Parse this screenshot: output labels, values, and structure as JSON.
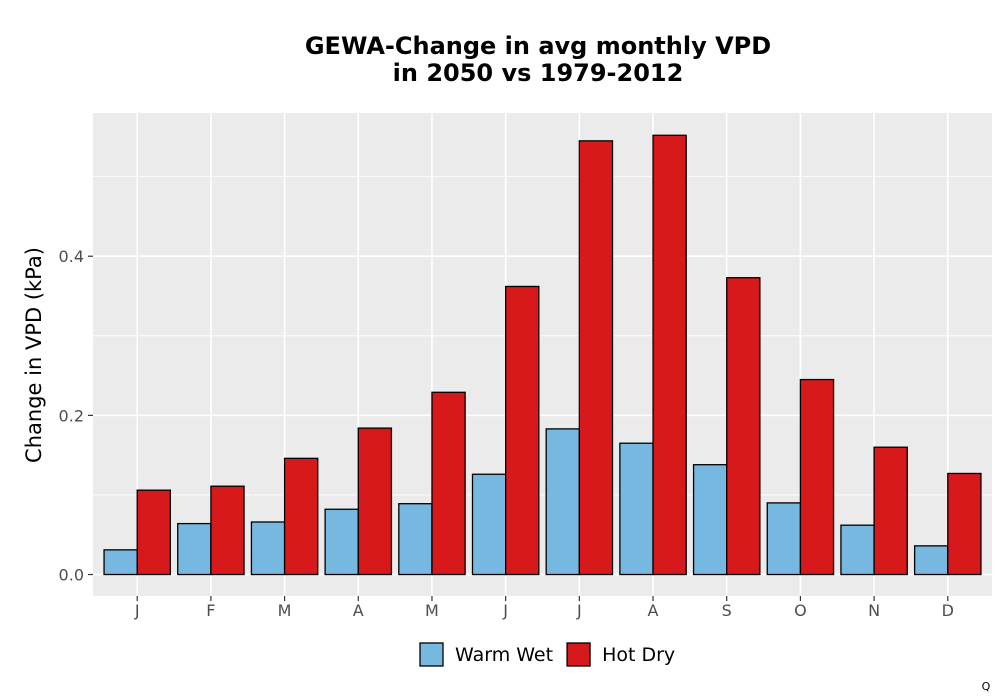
{
  "chart_data": {
    "type": "bar",
    "title_line1": "GEWA-Change in avg monthly VPD",
    "title_line2": "in 2050 vs 1979-2012",
    "xlabel": "",
    "ylabel": "Change in VPD (kPa)",
    "categories": [
      "J",
      "F",
      "M",
      "A",
      "M",
      "J",
      "J",
      "A",
      "S",
      "O",
      "N",
      "D"
    ],
    "series": [
      {
        "name": "Warm Wet",
        "color": "#77b8e1",
        "values": [
          0.031,
          0.064,
          0.066,
          0.082,
          0.089,
          0.126,
          0.183,
          0.165,
          0.138,
          0.09,
          0.062,
          0.036
        ]
      },
      {
        "name": "Hot Dry",
        "color": "#d7191c",
        "values": [
          0.106,
          0.111,
          0.146,
          0.184,
          0.229,
          0.362,
          0.545,
          0.552,
          0.373,
          0.245,
          0.16,
          0.127
        ]
      }
    ],
    "ylim": [
      -0.027,
      0.58
    ],
    "yticks": [
      0.0,
      0.2,
      0.4
    ],
    "ytick_labels": [
      "0.0",
      "0.2",
      "0.4"
    ],
    "grid": true,
    "legend_position": "bottom",
    "corner_note": "Q"
  }
}
